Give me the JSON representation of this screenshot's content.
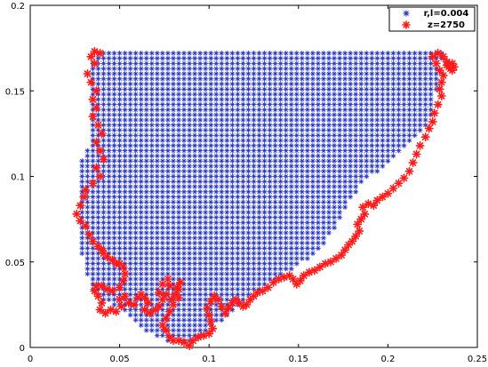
{
  "chart_data": {
    "type": "scatter",
    "xlim": [
      0,
      0.25
    ],
    "ylim": [
      0,
      0.2
    ],
    "xticks": [
      0,
      0.05,
      0.1,
      0.15,
      0.2,
      0.25
    ],
    "yticks": [
      0,
      0.05,
      0.1,
      0.15,
      0.2
    ],
    "xtick_labels": [
      "0",
      "0.05",
      "0.1",
      "0.15",
      "0.2",
      "0.25"
    ],
    "ytick_labels": [
      "0",
      "0.05",
      "0.1",
      "0.15",
      "0.2"
    ],
    "grid": false,
    "legend_position": "top-right",
    "colors": {
      "region": "#1f2fbf",
      "boundary": "#ff1a1a"
    },
    "series": [
      {
        "name": "r,l=0.004",
        "marker": "asterisk",
        "grid_step": 0.003,
        "region_left": [
          [
            0.027,
            0.06
          ],
          [
            0.028,
            0.085
          ],
          [
            0.029,
            0.11
          ],
          [
            0.033,
            0.12
          ],
          [
            0.034,
            0.135
          ],
          [
            0.035,
            0.148
          ],
          [
            0.035,
            0.168
          ],
          [
            0.038,
            0.173
          ]
        ],
        "region_right": [
          [
            0.231,
            0.173
          ],
          [
            0.228,
            0.155
          ],
          [
            0.225,
            0.135
          ],
          [
            0.214,
            0.12
          ],
          [
            0.2,
            0.106
          ],
          [
            0.188,
            0.098
          ],
          [
            0.18,
            0.088
          ],
          [
            0.172,
            0.072
          ],
          [
            0.16,
            0.055
          ],
          [
            0.145,
            0.045
          ],
          [
            0.125,
            0.032
          ],
          [
            0.112,
            0.02
          ],
          [
            0.1,
            0.01
          ],
          [
            0.09,
            0.003
          ]
        ],
        "region_bottom": [
          [
            0.085,
            0.001
          ],
          [
            0.075,
            0.004
          ],
          [
            0.065,
            0.01
          ],
          [
            0.055,
            0.02
          ],
          [
            0.045,
            0.025
          ],
          [
            0.035,
            0.032
          ],
          [
            0.031,
            0.045
          ]
        ]
      },
      {
        "name": "z=2750",
        "marker": "asterisk",
        "points": [
          [
            0.034,
            0.17
          ],
          [
            0.036,
            0.173
          ],
          [
            0.039,
            0.172
          ],
          [
            0.036,
            0.166
          ],
          [
            0.032,
            0.16
          ],
          [
            0.034,
            0.155
          ],
          [
            0.037,
            0.15
          ],
          [
            0.035,
            0.145
          ],
          [
            0.037,
            0.14
          ],
          [
            0.035,
            0.135
          ],
          [
            0.038,
            0.13
          ],
          [
            0.04,
            0.125
          ],
          [
            0.037,
            0.12
          ],
          [
            0.039,
            0.115
          ],
          [
            0.041,
            0.11
          ],
          [
            0.037,
            0.105
          ],
          [
            0.039,
            0.1
          ],
          [
            0.035,
            0.096
          ],
          [
            0.031,
            0.092
          ],
          [
            0.03,
            0.088
          ],
          [
            0.028,
            0.083
          ],
          [
            0.026,
            0.078
          ],
          [
            0.028,
            0.074
          ],
          [
            0.031,
            0.071
          ],
          [
            0.033,
            0.066
          ],
          [
            0.035,
            0.062
          ],
          [
            0.038,
            0.059
          ],
          [
            0.04,
            0.057
          ],
          [
            0.041,
            0.055
          ],
          [
            0.043,
            0.053
          ],
          [
            0.046,
            0.051
          ],
          [
            0.048,
            0.049
          ],
          [
            0.05,
            0.049
          ],
          [
            0.052,
            0.047
          ],
          [
            0.053,
            0.043
          ],
          [
            0.052,
            0.039
          ],
          [
            0.05,
            0.035
          ],
          [
            0.046,
            0.033
          ],
          [
            0.043,
            0.034
          ],
          [
            0.04,
            0.036
          ],
          [
            0.037,
            0.036
          ],
          [
            0.036,
            0.033
          ],
          [
            0.038,
            0.03
          ],
          [
            0.04,
            0.026
          ],
          [
            0.039,
            0.022
          ],
          [
            0.042,
            0.02
          ],
          [
            0.045,
            0.022
          ],
          [
            0.048,
            0.021
          ],
          [
            0.051,
            0.024
          ],
          [
            0.05,
            0.028
          ],
          [
            0.053,
            0.03
          ],
          [
            0.055,
            0.026
          ],
          [
            0.058,
            0.025
          ],
          [
            0.06,
            0.029
          ],
          [
            0.062,
            0.031
          ],
          [
            0.064,
            0.029
          ],
          [
            0.066,
            0.026
          ],
          [
            0.064,
            0.022
          ],
          [
            0.067,
            0.02
          ],
          [
            0.07,
            0.022
          ],
          [
            0.072,
            0.024
          ],
          [
            0.074,
            0.028
          ],
          [
            0.072,
            0.032
          ],
          [
            0.074,
            0.037
          ],
          [
            0.077,
            0.04
          ],
          [
            0.078,
            0.036
          ],
          [
            0.076,
            0.031
          ],
          [
            0.079,
            0.028
          ],
          [
            0.081,
            0.031
          ],
          [
            0.082,
            0.035
          ],
          [
            0.084,
            0.038
          ],
          [
            0.083,
            0.034
          ],
          [
            0.083,
            0.029
          ],
          [
            0.08,
            0.025
          ],
          [
            0.078,
            0.021
          ],
          [
            0.076,
            0.017
          ],
          [
            0.074,
            0.013
          ],
          [
            0.076,
            0.01
          ],
          [
            0.078,
            0.006
          ],
          [
            0.08,
            0.004
          ],
          [
            0.083,
            0.004
          ],
          [
            0.086,
            0.003
          ],
          [
            0.089,
            0.001
          ],
          [
            0.091,
            0.004
          ],
          [
            0.094,
            0.006
          ],
          [
            0.097,
            0.007
          ],
          [
            0.1,
            0.008
          ],
          [
            0.102,
            0.011
          ],
          [
            0.101,
            0.015
          ],
          [
            0.1,
            0.019
          ],
          [
            0.099,
            0.023
          ],
          [
            0.101,
            0.027
          ],
          [
            0.103,
            0.03
          ],
          [
            0.105,
            0.028
          ],
          [
            0.107,
            0.024
          ],
          [
            0.109,
            0.02
          ],
          [
            0.111,
            0.023
          ],
          [
            0.113,
            0.026
          ],
          [
            0.115,
            0.028
          ],
          [
            0.117,
            0.026
          ],
          [
            0.119,
            0.024
          ],
          [
            0.121,
            0.025
          ],
          [
            0.123,
            0.028
          ],
          [
            0.125,
            0.03
          ],
          [
            0.127,
            0.032
          ],
          [
            0.13,
            0.033
          ],
          [
            0.133,
            0.035
          ],
          [
            0.136,
            0.038
          ],
          [
            0.139,
            0.04
          ],
          [
            0.142,
            0.041
          ],
          [
            0.145,
            0.042
          ],
          [
            0.147,
            0.04
          ],
          [
            0.149,
            0.037
          ],
          [
            0.151,
            0.039
          ],
          [
            0.153,
            0.042
          ],
          [
            0.156,
            0.044
          ],
          [
            0.159,
            0.045
          ],
          [
            0.162,
            0.047
          ],
          [
            0.165,
            0.049
          ],
          [
            0.168,
            0.05
          ],
          [
            0.171,
            0.052
          ],
          [
            0.174,
            0.054
          ],
          [
            0.176,
            0.057
          ],
          [
            0.178,
            0.06
          ],
          [
            0.18,
            0.062
          ],
          [
            0.182,
            0.065
          ],
          [
            0.184,
            0.068
          ],
          [
            0.183,
            0.072
          ],
          [
            0.185,
            0.075
          ],
          [
            0.187,
            0.078
          ],
          [
            0.186,
            0.082
          ],
          [
            0.189,
            0.084
          ],
          [
            0.192,
            0.083
          ],
          [
            0.194,
            0.086
          ],
          [
            0.197,
            0.088
          ],
          [
            0.2,
            0.09
          ],
          [
            0.203,
            0.093
          ],
          [
            0.206,
            0.096
          ],
          [
            0.209,
            0.099
          ],
          [
            0.212,
            0.103
          ],
          [
            0.214,
            0.108
          ],
          [
            0.216,
            0.113
          ],
          [
            0.218,
            0.118
          ],
          [
            0.221,
            0.123
          ],
          [
            0.223,
            0.128
          ],
          [
            0.225,
            0.132
          ],
          [
            0.226,
            0.137
          ],
          [
            0.228,
            0.142
          ],
          [
            0.23,
            0.147
          ],
          [
            0.229,
            0.151
          ],
          [
            0.23,
            0.155
          ],
          [
            0.231,
            0.159
          ],
          [
            0.229,
            0.162
          ],
          [
            0.227,
            0.166
          ],
          [
            0.225,
            0.17
          ],
          [
            0.228,
            0.172
          ],
          [
            0.231,
            0.17
          ],
          [
            0.233,
            0.167
          ],
          [
            0.234,
            0.164
          ],
          [
            0.236,
            0.162
          ],
          [
            0.237,
            0.164
          ],
          [
            0.236,
            0.166
          ],
          [
            0.233,
            0.165
          ],
          [
            0.235,
            0.163
          ]
        ]
      }
    ]
  }
}
